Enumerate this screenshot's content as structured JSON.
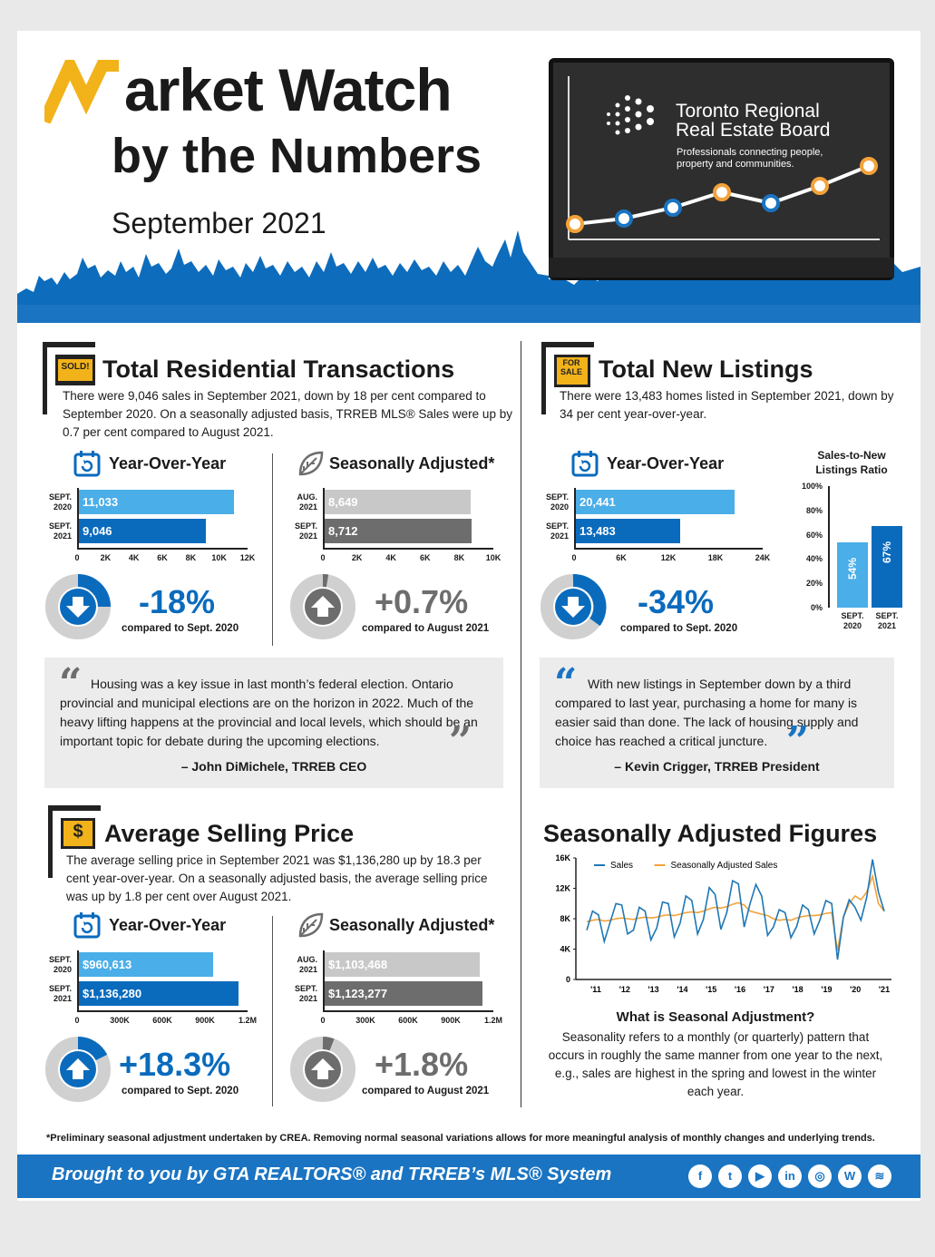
{
  "header": {
    "title_line1": "arket Watch",
    "title_line2": "by the Numbers",
    "date": "September 2021",
    "org_name_line1": "Toronto Regional",
    "org_name_line2": "Real Estate Board",
    "org_tagline": "Professionals connecting people, property and communities."
  },
  "colors": {
    "primary_blue": "#0a6bbd",
    "light_blue": "#4aaee8",
    "orange": "#f3a23a",
    "dark_gray": "#6d6d6d",
    "light_gray": "#c8c8c8",
    "brand_yellow": "#f2b21a"
  },
  "transactions": {
    "sign": "SOLD!",
    "title": "Total Residential Transactions",
    "body": "There were 9,046 sales in September 2021, down by 18 per cent compared to September 2020. On a seasonally adjusted basis, TRREB MLS® Sales were up by 0.7 per cent compared to August 2021.",
    "yoy": {
      "heading": "Year-Over-Year",
      "rows": [
        {
          "label1": "SEPT.",
          "label2": "2020",
          "value": 11033,
          "text": "11,033"
        },
        {
          "label1": "SEPT.",
          "label2": "2021",
          "value": 9046,
          "text": "9,046"
        }
      ],
      "ticks": [
        "0",
        "2K",
        "4K",
        "6K",
        "8K",
        "10K",
        "12K"
      ],
      "max": 12000,
      "change": "-18%",
      "compare": "compared to Sept. 2020",
      "direction": "down"
    },
    "sa": {
      "heading": "Seasonally Adjusted*",
      "rows": [
        {
          "label1": "AUG.",
          "label2": "2021",
          "value": 8649,
          "text": "8,649"
        },
        {
          "label1": "SEPT.",
          "label2": "2021",
          "value": 8712,
          "text": "8,712"
        }
      ],
      "ticks": [
        "0",
        "2K",
        "4K",
        "6K",
        "8K",
        "10K"
      ],
      "max": 10000,
      "change": "+0.7%",
      "compare": "compared to August 2021",
      "direction": "up"
    }
  },
  "listings": {
    "sign": "FOR SALE",
    "title": "Total New Listings",
    "body": "There were 13,483 homes listed in September 2021, down by 34 per cent year-over-year.",
    "yoy": {
      "heading": "Year-Over-Year",
      "rows": [
        {
          "label1": "SEPT.",
          "label2": "2020",
          "value": 20441,
          "text": "20,441"
        },
        {
          "label1": "SEPT.",
          "label2": "2021",
          "value": 13483,
          "text": "13,483"
        }
      ],
      "ticks": [
        "0",
        "6K",
        "12K",
        "18K",
        "24K"
      ],
      "max": 24000,
      "change": "-34%",
      "compare": "compared to Sept. 2020",
      "direction": "down"
    },
    "ratio": {
      "title_line1": "Sales-to-New",
      "title_line2": "Listings Ratio",
      "ticks": [
        "100%",
        "80%",
        "60%",
        "40%",
        "20%",
        "0%"
      ],
      "bars": [
        {
          "value": 54,
          "text": "54%",
          "label1": "SEPT.",
          "label2": "2020"
        },
        {
          "value": 67,
          "text": "67%",
          "label1": "SEPT.",
          "label2": "2021"
        }
      ]
    }
  },
  "quotes": {
    "left": {
      "text": "Housing was a key issue in last month’s federal election. Ontario provincial and municipal elections are on the horizon in 2022. Much of the heavy lifting happens at the provincial and local levels, which should be an important topic for debate during the upcoming elections.",
      "author": "– John DiMichele, TRREB CEO"
    },
    "right": {
      "text": "With new listings in September down by a third compared to last year, purchasing a home for many is easier said than done. The lack of housing supply and choice has reached a critical juncture.",
      "author": "– Kevin Crigger, TRREB President"
    }
  },
  "price": {
    "sign": "$",
    "title": "Average Selling Price",
    "body": "The average selling price in September 2021 was $1,136,280 up by 18.3 per cent year-over-year. On a seasonally adjusted basis, the average selling price was up by 1.8 per cent over August 2021.",
    "yoy": {
      "heading": "Year-Over-Year",
      "rows": [
        {
          "label1": "SEPT.",
          "label2": "2020",
          "value": 960613,
          "text": "$960,613"
        },
        {
          "label1": "SEPT.",
          "label2": "2021",
          "value": 1136280,
          "text": "$1,136,280"
        }
      ],
      "ticks": [
        "0",
        "300K",
        "600K",
        "900K",
        "1.2M"
      ],
      "max": 1200000,
      "change": "+18.3%",
      "compare": "compared to Sept. 2020",
      "direction": "up"
    },
    "sa": {
      "heading": "Seasonally Adjusted*",
      "rows": [
        {
          "label1": "AUG.",
          "label2": "2021",
          "value": 1103468,
          "text": "$1,103,468"
        },
        {
          "label1": "SEPT.",
          "label2": "2021",
          "value": 1123277,
          "text": "$1,123,277"
        }
      ],
      "ticks": [
        "0",
        "300K",
        "600K",
        "900K",
        "1.2M"
      ],
      "max": 1200000,
      "change": "+1.8%",
      "compare": "compared to August 2021",
      "direction": "up"
    }
  },
  "sa_figures": {
    "title": "Seasonally Adjusted Figures",
    "chart_data": {
      "type": "line",
      "title": "",
      "xlabel": "",
      "ylabel": "",
      "x_ticks": [
        "'11",
        "'12",
        "'13",
        "'14",
        "'15",
        "'16",
        "'17",
        "'18",
        "'19",
        "'20",
        "'21"
      ],
      "y_ticks": [
        "16K",
        "12K",
        "8K",
        "4K",
        "0"
      ],
      "ylim": [
        0,
        16000
      ],
      "legend": "top-left",
      "series": [
        {
          "name": "Sales",
          "color": "#1f77b4",
          "values": [
            6500,
            9000,
            8500,
            5000,
            7500,
            10000,
            9800,
            6000,
            6500,
            9500,
            9000,
            5200,
            6800,
            10200,
            10000,
            5600,
            7400,
            11000,
            10400,
            6000,
            7900,
            12100,
            11200,
            6600,
            8800,
            13000,
            12600,
            6900,
            10000,
            12500,
            11000,
            5800,
            6900,
            9200,
            8800,
            5500,
            7000,
            9800,
            9200,
            6000,
            7900,
            10400,
            10000,
            2600,
            8200,
            10500,
            9500,
            7800,
            10800,
            15800,
            11500,
            9000
          ]
        },
        {
          "name": "Seasonally Adjusted Sales",
          "color": "#f3a23a",
          "values": [
            7600,
            7800,
            7900,
            7700,
            7800,
            8000,
            8100,
            8000,
            7900,
            8100,
            8200,
            8100,
            8200,
            8400,
            8500,
            8400,
            8600,
            8800,
            8900,
            8800,
            9000,
            9300,
            9500,
            9400,
            9600,
            9900,
            10100,
            9800,
            9000,
            8800,
            8600,
            8400,
            8000,
            7800,
            7900,
            7800,
            8100,
            8300,
            8400,
            8400,
            8500,
            8700,
            8800,
            3800,
            8200,
            10000,
            11000,
            10500,
            11500,
            13600,
            10000,
            9000
          ]
        }
      ]
    },
    "question": "What is Seasonal Adjustment?",
    "answer": "Seasonality refers to a monthly (or quarterly) pattern that occurs in roughly the same manner from one year to the next, e.g., sales are highest in the spring and lowest in the winter each year."
  },
  "footnote": "*Preliminary seasonal adjustment undertaken by CREA. Removing normal seasonal variations allows for more meaningful analysis of monthly changes and underlying trends.",
  "footer": {
    "text": "Brought to you by GTA REALTORS® and TRREB’s MLS® System",
    "social": [
      {
        "icon": "facebook-icon",
        "glyph": "f"
      },
      {
        "icon": "twitter-icon",
        "glyph": "t"
      },
      {
        "icon": "youtube-icon",
        "glyph": "▶"
      },
      {
        "icon": "linkedin-icon",
        "glyph": "in"
      },
      {
        "icon": "instagram-icon",
        "glyph": "◎"
      },
      {
        "icon": "wordpress-icon",
        "glyph": "W"
      },
      {
        "icon": "podcast-icon",
        "glyph": "≋"
      }
    ]
  }
}
